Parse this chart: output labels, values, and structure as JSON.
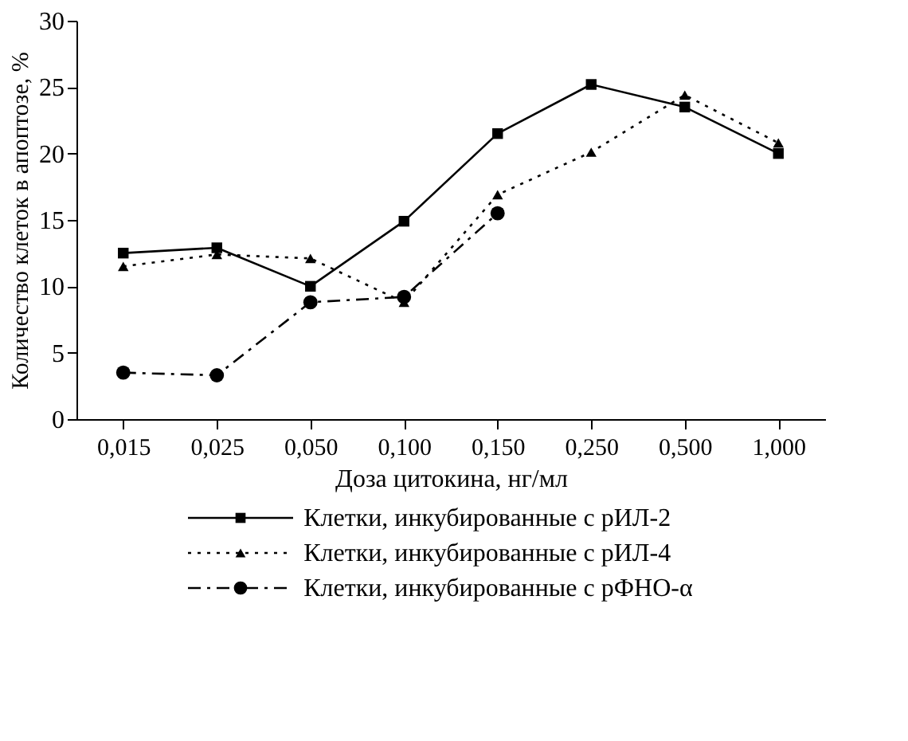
{
  "chart_data": {
    "type": "line",
    "xlabel": "Доза цитокина, нг/мл",
    "ylabel": "Количество клеток в апоптозе, %",
    "categories": [
      "0,015",
      "0,025",
      "0,050",
      "0,100",
      "0,150",
      "0,250",
      "0,500",
      "1,000"
    ],
    "series": [
      {
        "name": "Клетки, инкубированные с рИЛ-2",
        "color": "#000000",
        "marker": "square",
        "line_style": "solid",
        "values": [
          12.5,
          12.9,
          10.0,
          14.9,
          21.5,
          25.2,
          23.5,
          20.0
        ]
      },
      {
        "name": "Клетки, инкубированные с рИЛ-4",
        "color": "#000000",
        "marker": "triangle",
        "line_style": "dotted",
        "values": [
          11.5,
          12.4,
          12.1,
          8.8,
          16.9,
          20.1,
          24.4,
          20.8
        ]
      },
      {
        "name": "Клетки, инкубированные с рФНО-α",
        "color": "#000000",
        "marker": "circle",
        "line_style": "dashdot",
        "values": [
          3.5,
          3.3,
          8.8,
          9.2,
          15.5,
          null,
          null,
          null
        ]
      }
    ],
    "ylim": [
      0,
      30
    ],
    "yticks": [
      0,
      5,
      10,
      15,
      20,
      25,
      30
    ],
    "grid": false,
    "legend": "bottom"
  }
}
